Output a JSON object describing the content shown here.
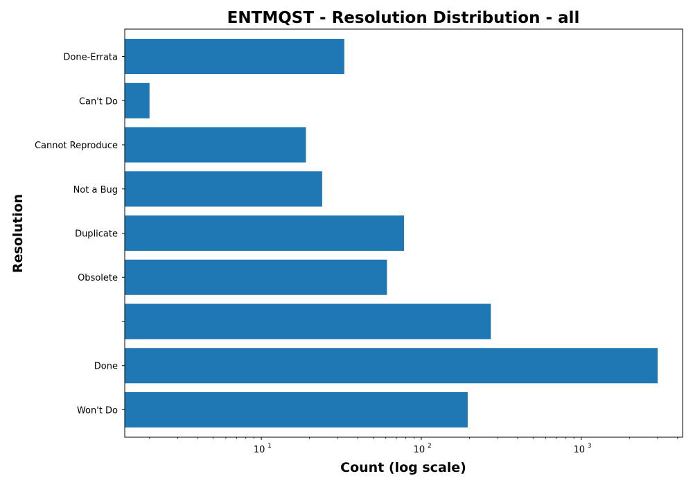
{
  "chart_data": {
    "type": "bar",
    "orientation": "horizontal",
    "title": "ENTMQST - Resolution Distribution - all",
    "xlabel": "Count (log scale)",
    "ylabel": "Resolution",
    "x_scale": "log",
    "xlim": [
      1.4,
      4300
    ],
    "x_ticks": [
      {
        "base": "10",
        "exp": "1"
      },
      {
        "base": "10",
        "exp": "2"
      },
      {
        "base": "10",
        "exp": "3"
      }
    ],
    "categories": [
      "Won't Do",
      "Done",
      "",
      "Obsolete",
      "Duplicate",
      "Not a Bug",
      "Cannot Reproduce",
      "Can't Do",
      "Done-Errata"
    ],
    "values": [
      195,
      3000,
      272,
      61,
      78,
      24,
      19,
      2,
      33
    ],
    "bar_color": "#1f77b4",
    "grid": false,
    "legend": "none"
  }
}
